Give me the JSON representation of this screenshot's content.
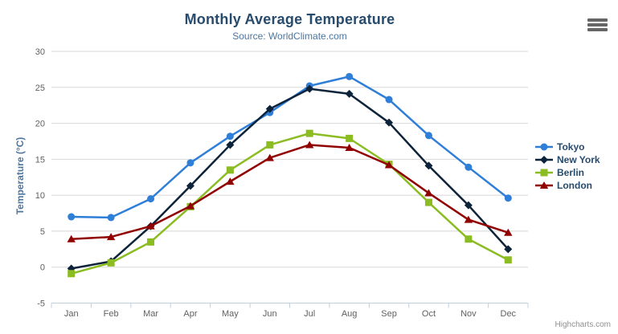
{
  "header": {
    "title": "Monthly Average Temperature",
    "subtitle": "Source: WorldClimate.com"
  },
  "menu": {
    "icon": "hamburger-icon"
  },
  "credit": {
    "label": "Highcharts.com"
  },
  "axis_colors": {
    "grid": "#d8d8d8",
    "axis_line": "#c0d0e0",
    "tick_label": "#606060",
    "y_title": "#4d759e"
  },
  "chart_data": {
    "type": "line",
    "title": "Monthly Average Temperature",
    "subtitle": "Source: WorldClimate.com",
    "categories": [
      "Jan",
      "Feb",
      "Mar",
      "Apr",
      "May",
      "Jun",
      "Jul",
      "Aug",
      "Sep",
      "Oct",
      "Nov",
      "Dec"
    ],
    "xlabel": "",
    "ylabel": "Temperature (°C)",
    "ylim": [
      -5,
      30
    ],
    "ytick_step": 5,
    "yticks": [
      -5,
      0,
      5,
      10,
      15,
      20,
      25,
      30
    ],
    "grid": true,
    "legend_position": "right",
    "series": [
      {
        "name": "Tokyo",
        "color": "#2f7ed8",
        "marker": "circle",
        "values": [
          7.0,
          6.9,
          9.5,
          14.5,
          18.2,
          21.5,
          25.2,
          26.5,
          23.3,
          18.3,
          13.9,
          9.6
        ]
      },
      {
        "name": "New York",
        "color": "#0d233a",
        "marker": "diamond",
        "values": [
          -0.2,
          0.8,
          5.7,
          11.3,
          17.0,
          22.0,
          24.8,
          24.1,
          20.1,
          14.1,
          8.6,
          2.5
        ]
      },
      {
        "name": "Berlin",
        "color": "#8bbc21",
        "marker": "square",
        "values": [
          -0.9,
          0.6,
          3.5,
          8.4,
          13.5,
          17.0,
          18.6,
          17.9,
          14.3,
          9.0,
          3.9,
          1.0
        ]
      },
      {
        "name": "London",
        "color": "#910000",
        "marker": "triangle",
        "values": [
          3.9,
          4.2,
          5.7,
          8.5,
          11.9,
          15.2,
          17.0,
          16.6,
          14.2,
          10.3,
          6.6,
          4.8
        ]
      }
    ]
  }
}
